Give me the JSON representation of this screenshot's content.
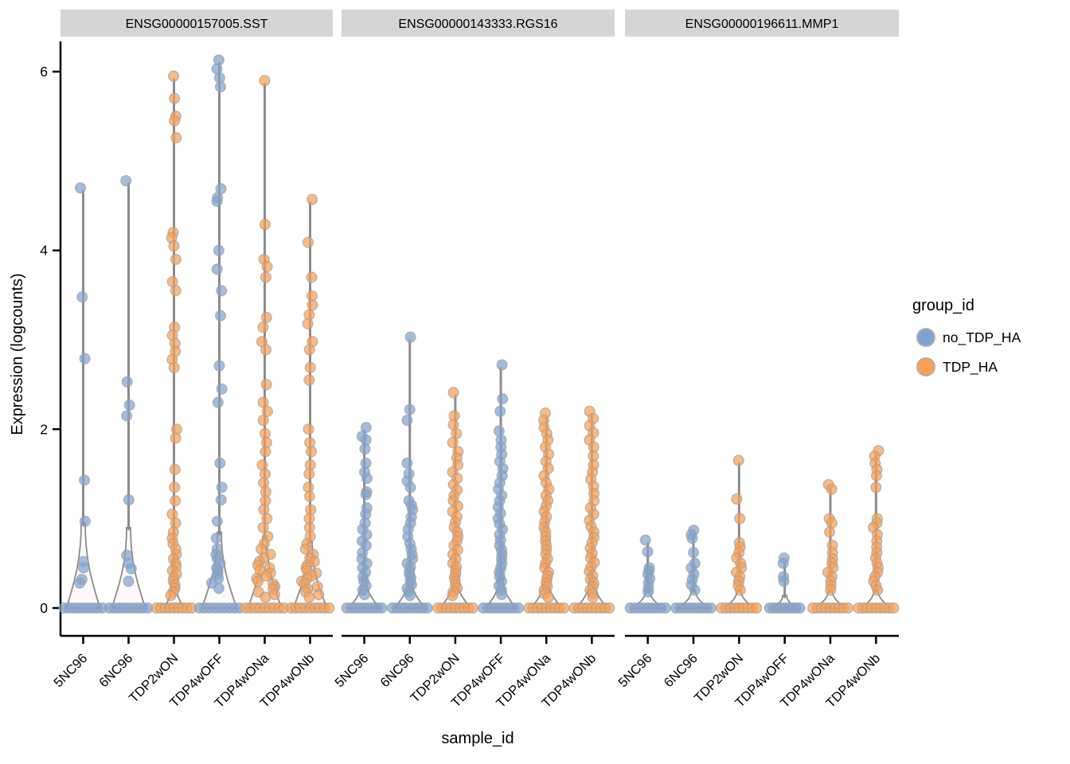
{
  "chart_data": {
    "type": "violin",
    "title": "",
    "xlabel": "sample_id",
    "ylabel": "Expression (logcounts)",
    "yticks": [
      0,
      2,
      4,
      6
    ],
    "ylim": [
      0,
      6.3
    ],
    "grid": false,
    "x_categories": [
      "5NC96",
      "6NC96",
      "TDP2wON",
      "TDP4wOFF",
      "TDP4wONa",
      "TDP4wONb"
    ],
    "legend": {
      "title": "group_id",
      "position": "right",
      "entries": [
        {
          "label": "no_TDP_HA",
          "color": "#7EA3D3"
        },
        {
          "label": "TDP_HA",
          "color": "#FBA052"
        }
      ]
    },
    "style": {
      "strip_fill": "#d5d5d5",
      "violin_fill": "#fafafa",
      "violin_stroke": "#8c8c8c",
      "point_stroke": "#9e9e9e",
      "axis_color": "#000000",
      "group_colors": {
        "no_TDP_HA": "#7EA3D3",
        "TDP_HA": "#FBA052"
      }
    },
    "facets": [
      {
        "title": "ENSG00000157005.SST",
        "violins": [
          {
            "sample": "5NC96",
            "group": "no_TDP_HA",
            "flare_halfwidth": 21,
            "flare_top": 0.95,
            "jitter": 9,
            "zero_row": true,
            "points": [
              4.7,
              3.48,
              2.79,
              1.43,
              0.97,
              0.52,
              0.45,
              0.32,
              0.28
            ]
          },
          {
            "sample": "6NC96",
            "group": "no_TDP_HA",
            "flare_halfwidth": 21,
            "flare_top": 0.9,
            "jitter": 9,
            "zero_row": true,
            "points": [
              4.78,
              2.53,
              2.27,
              2.15,
              1.21,
              0.59,
              0.5,
              0.44,
              0.3
            ]
          },
          {
            "sample": "TDP2wON",
            "group": "TDP_HA",
            "flare_halfwidth": 12,
            "flare_top": 0.3,
            "jitter": 6,
            "zero_row": true,
            "points": [
              5.95,
              5.7,
              5.5,
              5.45,
              5.26,
              4.2,
              4.14,
              4.05,
              3.9,
              3.65,
              3.55,
              3.14,
              3.05,
              2.96,
              2.87,
              2.78,
              2.69,
              2.0,
              1.9,
              1.55,
              1.35,
              1.2,
              1.05,
              0.95,
              0.85,
              0.78,
              0.72,
              0.66,
              0.6,
              0.55,
              0.5,
              0.46,
              0.42,
              0.38,
              0.34,
              0.3,
              0.26,
              0.22,
              0.18,
              0.14
            ]
          },
          {
            "sample": "TDP4wOFF",
            "group": "no_TDP_HA",
            "flare_halfwidth": 22,
            "flare_top": 0.85,
            "jitter": 14,
            "zero_row": true,
            "points": [
              6.13,
              6.03,
              5.93,
              5.83,
              4.69,
              4.59,
              4.55,
              4.0,
              3.79,
              3.55,
              3.27,
              2.71,
              2.45,
              2.3,
              1.62,
              1.35,
              1.21,
              0.97,
              0.78,
              0.66,
              0.6,
              0.55,
              0.5,
              0.45,
              0.42,
              0.38,
              0.33,
              0.28,
              0.22
            ]
          },
          {
            "sample": "TDP4wONa",
            "group": "TDP_HA",
            "flare_halfwidth": 21,
            "flare_top": 0.8,
            "jitter": 16,
            "zero_row": true,
            "points": [
              5.9,
              4.29,
              3.9,
              3.82,
              3.7,
              3.25,
              3.14,
              2.98,
              2.89,
              2.5,
              2.3,
              2.2,
              2.1,
              1.95,
              1.85,
              1.75,
              1.6,
              1.5,
              1.4,
              1.3,
              1.2,
              1.1,
              1.0,
              0.9,
              0.8,
              0.72,
              0.66,
              0.6,
              0.56,
              0.52,
              0.48,
              0.45,
              0.42,
              0.39,
              0.36,
              0.33,
              0.3,
              0.27,
              0.24,
              0.21,
              0.18,
              0.15,
              0.12
            ]
          },
          {
            "sample": "TDP4wONb",
            "group": "TDP_HA",
            "flare_halfwidth": 21,
            "flare_top": 0.75,
            "jitter": 16,
            "zero_row": true,
            "points": [
              4.57,
              4.09,
              3.7,
              3.49,
              3.39,
              3.28,
              3.18,
              2.98,
              2.89,
              2.69,
              2.55,
              2.0,
              1.85,
              1.75,
              1.6,
              1.5,
              1.35,
              1.25,
              1.1,
              1.0,
              0.9,
              0.8,
              0.72,
              0.66,
              0.6,
              0.56,
              0.52,
              0.48,
              0.45,
              0.42,
              0.39,
              0.36,
              0.33,
              0.3,
              0.27,
              0.24,
              0.21,
              0.18,
              0.15,
              0.12
            ]
          }
        ]
      },
      {
        "title": "ENSG00000143333.RGS16",
        "violins": [
          {
            "sample": "5NC96",
            "group": "no_TDP_HA",
            "flare_halfwidth": 19,
            "flare_top": 0.33,
            "jitter": 6,
            "zero_row": true,
            "points": [
              2.02,
              1.92,
              1.88,
              1.78,
              1.62,
              1.52,
              1.45,
              1.3,
              1.27,
              1.12,
              1.05,
              0.95,
              0.88,
              0.82,
              0.75,
              0.7,
              0.62,
              0.55,
              0.5,
              0.45,
              0.4,
              0.35,
              0.3,
              0.25,
              0.2,
              0.15
            ]
          },
          {
            "sample": "6NC96",
            "group": "no_TDP_HA",
            "flare_halfwidth": 19,
            "flare_top": 0.33,
            "jitter": 6,
            "zero_row": true,
            "points": [
              3.03,
              2.22,
              2.1,
              1.62,
              1.5,
              1.42,
              1.35,
              1.2,
              1.15,
              1.1,
              1.02,
              0.95,
              0.88,
              0.8,
              0.72,
              0.66,
              0.6,
              0.55,
              0.5,
              0.46,
              0.42,
              0.38,
              0.34,
              0.3,
              0.26,
              0.22,
              0.18,
              0.14
            ]
          },
          {
            "sample": "TDP2wON",
            "group": "TDP_HA",
            "flare_halfwidth": 19,
            "flare_top": 0.33,
            "jitter": 6,
            "zero_row": true,
            "points": [
              2.41,
              2.15,
              2.05,
              1.95,
              1.85,
              1.75,
              1.68,
              1.6,
              1.52,
              1.45,
              1.38,
              1.32,
              1.26,
              1.2,
              1.14,
              1.08,
              1.02,
              0.96,
              0.9,
              0.85,
              0.8,
              0.75,
              0.7,
              0.65,
              0.6,
              0.55,
              0.5,
              0.46,
              0.42,
              0.38,
              0.34,
              0.3,
              0.26,
              0.22,
              0.18,
              0.14
            ]
          },
          {
            "sample": "TDP4wOFF",
            "group": "no_TDP_HA",
            "flare_halfwidth": 19,
            "flare_top": 0.33,
            "jitter": 6,
            "zero_row": true,
            "points": [
              2.72,
              2.34,
              2.2,
              1.98,
              1.88,
              1.8,
              1.72,
              1.64,
              1.56,
              1.48,
              1.4,
              1.33,
              1.26,
              1.2,
              1.13,
              1.06,
              1.0,
              0.94,
              0.88,
              0.82,
              0.76,
              0.7,
              0.65,
              0.6,
              0.55,
              0.5,
              0.45,
              0.4,
              0.35,
              0.3,
              0.25,
              0.2,
              0.15
            ]
          },
          {
            "sample": "TDP4wONa",
            "group": "TDP_HA",
            "flare_halfwidth": 19,
            "flare_top": 0.33,
            "jitter": 6,
            "zero_row": true,
            "points": [
              2.18,
              2.1,
              2.02,
              1.95,
              1.88,
              1.8,
              1.72,
              1.64,
              1.56,
              1.48,
              1.4,
              1.33,
              1.26,
              1.2,
              1.14,
              1.08,
              1.02,
              0.96,
              0.9,
              0.85,
              0.8,
              0.75,
              0.7,
              0.65,
              0.6,
              0.55,
              0.5,
              0.45,
              0.4,
              0.36,
              0.32,
              0.28,
              0.24,
              0.2,
              0.16,
              0.12
            ]
          },
          {
            "sample": "TDP4wONb",
            "group": "TDP_HA",
            "flare_halfwidth": 19,
            "flare_top": 0.33,
            "jitter": 6,
            "zero_row": true,
            "points": [
              2.2,
              2.12,
              2.04,
              1.96,
              1.88,
              1.8,
              1.7,
              1.6,
              1.52,
              1.44,
              1.36,
              1.28,
              1.2,
              1.12,
              1.05,
              0.98,
              0.91,
              0.85,
              0.79,
              0.73,
              0.67,
              0.61,
              0.56,
              0.51,
              0.46,
              0.41,
              0.36,
              0.32,
              0.28,
              0.24,
              0.2,
              0.16,
              0.12
            ]
          }
        ]
      },
      {
        "title": "ENSG00000196611.MMP1",
        "violins": [
          {
            "sample": "5NC96",
            "group": "no_TDP_HA",
            "flare_halfwidth": 19,
            "flare_top": 0.2,
            "jitter": 6,
            "zero_row": true,
            "points": [
              0.76,
              0.63,
              0.45,
              0.42,
              0.38,
              0.33,
              0.28,
              0.22,
              0.18
            ]
          },
          {
            "sample": "6NC96",
            "group": "no_TDP_HA",
            "flare_halfwidth": 19,
            "flare_top": 0.2,
            "jitter": 6,
            "zero_row": true,
            "points": [
              0.87,
              0.82,
              0.78,
              0.62,
              0.5,
              0.45,
              0.38,
              0.32,
              0.26,
              0.2
            ]
          },
          {
            "sample": "TDP2wON",
            "group": "TDP_HA",
            "flare_halfwidth": 19,
            "flare_top": 0.2,
            "jitter": 6,
            "zero_row": true,
            "points": [
              1.65,
              1.22,
              1.0,
              0.73,
              0.68,
              0.62,
              0.56,
              0.5,
              0.45,
              0.4,
              0.35,
              0.3,
              0.25,
              0.2
            ]
          },
          {
            "sample": "TDP4wOFF",
            "group": "no_TDP_HA",
            "flare_halfwidth": 16,
            "flare_top": 0.14,
            "jitter": 5,
            "zero_row": true,
            "points": [
              0.56,
              0.5,
              0.35,
              0.3
            ]
          },
          {
            "sample": "TDP4wONa",
            "group": "TDP_HA",
            "flare_halfwidth": 19,
            "flare_top": 0.2,
            "jitter": 6,
            "zero_row": true,
            "points": [
              1.38,
              1.33,
              1.0,
              0.95,
              0.85,
              0.7,
              0.62,
              0.55,
              0.5,
              0.45,
              0.4,
              0.35,
              0.3,
              0.25,
              0.2
            ]
          },
          {
            "sample": "TDP4wONb",
            "group": "TDP_HA",
            "flare_halfwidth": 19,
            "flare_top": 0.2,
            "jitter": 6,
            "zero_row": true,
            "points": [
              1.76,
              1.7,
              1.62,
              1.55,
              1.48,
              1.35,
              1.0,
              0.95,
              0.9,
              0.82,
              0.75,
              0.68,
              0.62,
              0.56,
              0.5,
              0.45,
              0.4,
              0.35,
              0.3,
              0.25,
              0.2
            ]
          }
        ]
      }
    ]
  }
}
